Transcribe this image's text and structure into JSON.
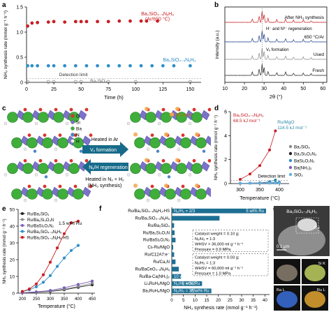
{
  "panels": {
    "a": "a",
    "b": "b",
    "c": "c",
    "d": "d",
    "e": "e",
    "f": "f",
    "g": "g"
  },
  "colors": {
    "red": "#c81e23",
    "blue": "#2f8fc9",
    "gray": "#8c8c8c",
    "black": "#222222",
    "navy": "#1f3f8a",
    "purple": "#7b5fb5",
    "teal": "#2a8aa8",
    "lightblue": "#5fb3de"
  },
  "chart_data": [
    {
      "id": "a",
      "type": "scatter",
      "xlabel": "Time (h)",
      "ylabel": "NH₃ synthesis rate (mmol g⁻¹ h⁻¹)",
      "xlim": [
        0,
        160
      ],
      "ylim": [
        0,
        1.5
      ],
      "xticks": [
        "0",
        "25",
        "50",
        "75",
        "100",
        "125",
        "150"
      ],
      "yticks": [
        "0",
        "0.5",
        "1.0",
        "1.5"
      ],
      "series": [
        {
          "name": "Ba₂SiO₄₋ₓNᵧHᵤ (Ar/650 °C)",
          "color": "red",
          "x": [
            1,
            5,
            10,
            20,
            25,
            35,
            45,
            50,
            55,
            65,
            75,
            85,
            95,
            105,
            110,
            120
          ],
          "y": [
            1.12,
            1.18,
            1.19,
            1.2,
            1.21,
            1.2,
            1.21,
            1.21,
            1.21,
            1.21,
            1.21,
            1.22,
            1.22,
            1.22,
            1.22,
            1.22
          ]
        },
        {
          "name": "Ba₂SiO₄₋ₓNᵧHᵤ",
          "color": "blue",
          "x": [
            1,
            5,
            10,
            20,
            25,
            35,
            45,
            55,
            65,
            75,
            85,
            95,
            105,
            115,
            125,
            135,
            150
          ],
          "y": [
            0.33,
            0.33,
            0.33,
            0.33,
            0.33,
            0.33,
            0.33,
            0.33,
            0.33,
            0.33,
            0.33,
            0.33,
            0.33,
            0.33,
            0.33,
            0.33,
            0.33
          ]
        },
        {
          "name": "Ba₂SiO₄",
          "color": "gray",
          "x": [
            1,
            20,
            25,
            45,
            50,
            75,
            100,
            150
          ],
          "y": [
            0.01,
            0.01,
            0.01,
            0.01,
            0.01,
            0.01,
            0.01,
            0.01
          ]
        }
      ],
      "annotations": [
        "Detection limit"
      ]
    },
    {
      "id": "b",
      "type": "line",
      "xlabel": "2θ (°)",
      "ylabel": "Intensity (a.u.)",
      "xticks": [
        "10",
        "20",
        "30",
        "40",
        "50",
        "60"
      ],
      "series": [
        {
          "name": "After NH₃ synthesis",
          "color": "red"
        },
        {
          "name": "650 °C/Ar",
          "color": "navy"
        },
        {
          "name": "Used",
          "color": "gray"
        },
        {
          "name": "Fresh",
          "color": "black"
        }
      ],
      "annotations": [
        "H⁻ and N³⁻ regeneration",
        "Vₓ formation"
      ]
    },
    {
      "id": "d",
      "type": "scatter",
      "xlabel": "Temperature (°C)",
      "ylabel": "NH₃ synthesis rate (mmol g⁻¹ h⁻¹)",
      "xlim": [
        275,
        425
      ],
      "ylim": [
        0,
        6
      ],
      "xticks": [
        "300",
        "350",
        "400"
      ],
      "yticks": [
        "0",
        "2",
        "4",
        "6"
      ],
      "series": [
        {
          "name": "Ba₂SiO₄₋ₓNᵧHᵤ",
          "color": "red",
          "x": [
            300,
            325,
            350,
            375,
            390
          ],
          "y": [
            0.35,
            0.8,
            1.5,
            2.8,
            4.4
          ]
        },
        {
          "name": "Ru/MgO",
          "color": "teal",
          "x": [
            300,
            325,
            350,
            375,
            390
          ],
          "y": [
            0.02,
            0.03,
            0.06,
            0.15,
            0.3
          ]
        },
        {
          "name": "Ba₂SiO₄",
          "color": "gray",
          "x": [
            300,
            325,
            350,
            375,
            390,
            400
          ],
          "y": [
            0.03,
            0.03,
            0.04,
            0.05,
            0.06,
            0.06
          ]
        },
        {
          "name": "Ba₂Si₃O₃N₄",
          "color": "black",
          "x": [
            300,
            325,
            350,
            375,
            390,
            400
          ],
          "y": [
            0.03,
            0.04,
            0.05,
            0.06,
            0.08,
            0.1
          ]
        },
        {
          "name": "BaSi₂O₂N₂",
          "color": "blue",
          "x": [
            300,
            325,
            350,
            375,
            390,
            400
          ],
          "y": [
            0.03,
            0.04,
            0.05,
            0.07,
            0.09,
            0.12
          ]
        },
        {
          "name": "Ba(NH₂)₂",
          "color": "purple",
          "x": [
            300,
            325,
            350,
            375,
            390,
            400
          ],
          "y": [
            0.03,
            0.03,
            0.04,
            0.05,
            0.06,
            0.07
          ]
        },
        {
          "name": "SiO₂",
          "color": "lightblue",
          "x": [
            300,
            325,
            350,
            375,
            390,
            400
          ],
          "y": [
            0.02,
            0.02,
            0.03,
            0.03,
            0.04,
            0.05
          ]
        }
      ],
      "annotations": [
        "Ba₂SiO₄₋ₓNᵧHᵤ",
        "68.5 kJ mol⁻¹",
        "Ru/MgO",
        "114.5 kJ mol⁻¹",
        "Detection limit"
      ]
    },
    {
      "id": "e",
      "type": "line",
      "xlabel": "Temperature (°C)",
      "ylabel": "NH₃ synthesis rate (mmol g⁻¹ h⁻¹)",
      "xlim": [
        185,
        460
      ],
      "ylim": [
        0,
        50
      ],
      "xticks": [
        "200",
        "250",
        "300",
        "350",
        "400",
        "450"
      ],
      "yticks": [
        "0",
        "10",
        "20",
        "30",
        "40",
        "50"
      ],
      "series": [
        {
          "name": "Ru/Ba₂SiO₄",
          "color": "black",
          "x": [
            200,
            250,
            300,
            350,
            400,
            450
          ],
          "y": [
            0.2,
            0.5,
            1.0,
            2.0,
            3.5,
            5.0
          ]
        },
        {
          "name": "Ru/Ba₂Si₃O₃N",
          "color": "gray",
          "x": [
            200,
            250,
            300,
            350,
            400,
            450
          ],
          "y": [
            0.2,
            0.6,
            1.2,
            2.4,
            4.0,
            6.0
          ]
        },
        {
          "name": "Ru/BaSi₂O₂N₂",
          "color": "purple",
          "x": [
            200,
            250,
            300,
            350,
            400,
            450
          ],
          "y": [
            0.3,
            0.8,
            1.6,
            3.2,
            5.2,
            7.2
          ]
        },
        {
          "name": "Ru/Ba₂SiO₄₋ₓNᵧHᵤ",
          "color": "blue",
          "x": [
            200,
            225,
            250,
            275,
            300,
            325,
            350,
            375,
            400
          ],
          "y": [
            1.0,
            2.0,
            3.8,
            6.5,
            10.5,
            16.0,
            21.0,
            25.5,
            28.5
          ]
        },
        {
          "name": "Ru/Ba₂SiO₄₋ₓNᵧHᵤ-HS",
          "color": "red",
          "x": [
            200,
            225,
            250,
            275,
            300,
            325,
            350,
            375,
            400
          ],
          "y": [
            1.0,
            2.5,
            5.5,
            11.0,
            18.5,
            27.0,
            35.5,
            42.0,
            43.0
          ]
        }
      ],
      "annotations": [
        "1.5 wt% Ru"
      ]
    },
    {
      "id": "f",
      "type": "bar",
      "xlabel": "NH₃ synthesis rate (mmol g⁻¹ h⁻¹)",
      "xlim": [
        0,
        42
      ],
      "xticks": [
        "0",
        "5",
        "10",
        "15",
        "20",
        "25",
        "30",
        "35",
        "40"
      ],
      "categories": [
        "Ru/Ba₂SiO₄₋ₓNᵧHᵤ-HS",
        "Ru/Ba₂SiO₄₋ₓNᵧHᵤ",
        "Ru/Ba₂SiO₄",
        "Ru/Ba₂Si₃O₃N",
        "Ru/BaSi₂O₂N₂",
        "Cs-Ru/MgO",
        "Ru/C12A7:e⁻",
        "Ru/Ca₂N",
        "Ru/BaCeO₃₋ₓNᵧHᵤ",
        "Ru/Ba-Ca(NH₂)₂",
        "Li₄RuH₆/MgO",
        "Ba₂RuH₆/MgO"
      ],
      "values": [
        40.5,
        20.5,
        1.0,
        1.2,
        1.6,
        0.6,
        1.0,
        1.6,
        3.0,
        4.0,
        13.0,
        17.0
      ],
      "bar_labels": [
        "5 wt% Ru",
        "",
        "1.5 wt% Ru",
        "",
        "",
        "",
        "",
        "",
        "",
        "10 wt% Ru",
        "8 wt% Ru",
        "5 wt% Ru"
      ],
      "ratio_labels": [
        "N₂/H₂ = 2/3",
        "",
        "",
        "",
        "",
        "",
        "",
        "",
        "",
        "",
        "N₂/H₂ = 3/2",
        "N₂/H₂ = 3/2"
      ],
      "conditions": [
        [
          "Catalyst weight = 0.10 g;",
          "N₂/H₂ = 1:3",
          "WHSV = 36,000 ml g⁻¹ h⁻¹",
          "Pressure = 0.9 MPa"
        ],
        [
          "Catalyst weight = 0.03 g;",
          "N₂/H₂ = 1:3",
          "WHSV = 60,000 ml g⁻¹ h⁻¹",
          "Pressure = 1.0 MPa"
        ]
      ]
    }
  ],
  "schematic": {
    "labels": [
      "O",
      "Si",
      "Ba",
      "N",
      "H",
      "Electron"
    ],
    "arrow1_label": "Heated in Ar",
    "arrow1_text": "Vₓ formation",
    "arrow2_text": "Nᵧ/H regeneration",
    "arrow2_label": "Heated in N₂ + H₂ (NH₃ synthesis)"
  },
  "micrograph": {
    "title": "Ba₂SiO₄₋ₓNᵧHᵤ",
    "scale": "0.1 μm",
    "tiles": [
      "Ba L",
      "Si K",
      "Ru L"
    ],
    "ru_label": "Ru"
  }
}
